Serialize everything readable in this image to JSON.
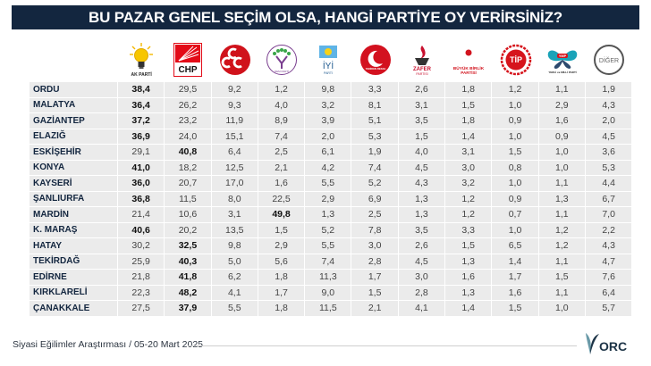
{
  "header": {
    "title": "BU PAZAR GENEL SEÇİM OLSA, HANGİ PARTİYE OY VERİRSİNİZ?"
  },
  "parties": [
    {
      "name": "AK PARTİ",
      "logo_caption": "AK PARTİ",
      "icon": "ak-parti-bulb-icon",
      "color": "#f5b800"
    },
    {
      "name": "CHP",
      "logo_caption": "CHP",
      "icon": "chp-six-arrows-icon",
      "color": "#e30a17"
    },
    {
      "name": "MHP",
      "logo_caption": "",
      "icon": "mhp-three-crescents-icon",
      "color": "#d0121b"
    },
    {
      "name": "DEM PARTİ",
      "logo_caption": "DEM PARTİ",
      "icon": "dem-parti-tree-icon",
      "color": "#7a3e8f"
    },
    {
      "name": "İYİ PARTİ",
      "logo_caption": "İYİ",
      "icon": "iyi-parti-sun-icon",
      "color": "#1f8ad0"
    },
    {
      "name": "YENİDEN REFAH",
      "logo_caption": "YENİDEN REFAH",
      "icon": "yeniden-refah-crescent-icon",
      "color": "#d3111f"
    },
    {
      "name": "ZAFER PARTİSİ",
      "logo_caption": "ZAFER PARTİSİ",
      "icon": "zafer-flame-icon",
      "color": "#c8102e"
    },
    {
      "name": "BÜYÜK BİRLİK PARTİSİ",
      "logo_caption": "BÜYÜK BİRLİK PARTİSİ",
      "icon": "bbp-crescent-rose-icon",
      "color": "#d2141e"
    },
    {
      "name": "TİP",
      "logo_caption": "TİP",
      "icon": "tip-wreath-icon",
      "color": "#d6141c"
    },
    {
      "name": "YMP",
      "logo_caption": "YERLİ ve MİLLİ PARTİ",
      "icon": "ymp-butterfly-icon",
      "color": "#1aa3b8"
    },
    {
      "name": "DİĞER",
      "logo_caption": "DİĞER",
      "icon": "other-circle-icon",
      "color": "#555555"
    }
  ],
  "chart_data": {
    "type": "table",
    "title": "BU PAZAR GENEL SEÇİM OLSA, HANGİ PARTİYE OY VERİRSİNİZ?",
    "columns": [
      "AK PARTİ",
      "CHP",
      "MHP",
      "DEM PARTİ",
      "İYİ PARTİ",
      "YENİDEN REFAH",
      "ZAFER PARTİSİ",
      "BÜYÜK BİRLİK PARTİSİ",
      "TİP",
      "YMP",
      "DİĞER"
    ],
    "rows": [
      {
        "province": "ORDU",
        "values": [
          "38,4",
          "29,5",
          "9,2",
          "1,2",
          "9,8",
          "3,3",
          "2,6",
          "1,8",
          "1,2",
          "1,1",
          "1,9"
        ],
        "leader_index": 0
      },
      {
        "province": "MALATYA",
        "values": [
          "36,4",
          "26,2",
          "9,3",
          "4,0",
          "3,2",
          "8,1",
          "3,1",
          "1,5",
          "1,0",
          "2,9",
          "4,3"
        ],
        "leader_index": 0
      },
      {
        "province": "GAZİANTEP",
        "values": [
          "37,2",
          "23,2",
          "11,9",
          "8,9",
          "3,9",
          "5,1",
          "3,5",
          "1,8",
          "0,9",
          "1,6",
          "2,0"
        ],
        "leader_index": 0
      },
      {
        "province": "ELAZIĞ",
        "values": [
          "36,9",
          "24,0",
          "15,1",
          "7,4",
          "2,0",
          "5,3",
          "1,5",
          "1,4",
          "1,0",
          "0,9",
          "4,5"
        ],
        "leader_index": 0
      },
      {
        "province": "ESKİŞEHİR",
        "values": [
          "29,1",
          "40,8",
          "6,4",
          "2,5",
          "6,1",
          "1,9",
          "4,0",
          "3,1",
          "1,5",
          "1,0",
          "3,6"
        ],
        "leader_index": 1
      },
      {
        "province": "KONYA",
        "values": [
          "41,0",
          "18,2",
          "12,5",
          "2,1",
          "4,2",
          "7,4",
          "4,5",
          "3,0",
          "0,8",
          "1,0",
          "5,3"
        ],
        "leader_index": 0
      },
      {
        "province": "KAYSERİ",
        "values": [
          "36,0",
          "20,7",
          "17,0",
          "1,6",
          "5,5",
          "5,2",
          "4,3",
          "3,2",
          "1,0",
          "1,1",
          "4,4"
        ],
        "leader_index": 0
      },
      {
        "province": "ŞANLIURFA",
        "values": [
          "36,8",
          "11,5",
          "8,0",
          "22,5",
          "2,9",
          "6,9",
          "1,3",
          "1,2",
          "0,9",
          "1,3",
          "6,7"
        ],
        "leader_index": 0
      },
      {
        "province": "MARDİN",
        "values": [
          "21,4",
          "10,6",
          "3,1",
          "49,8",
          "1,3",
          "2,5",
          "1,3",
          "1,2",
          "0,7",
          "1,1",
          "7,0"
        ],
        "leader_index": 3
      },
      {
        "province": "K. MARAŞ",
        "values": [
          "40,6",
          "20,2",
          "13,5",
          "1,5",
          "5,2",
          "7,8",
          "3,5",
          "3,3",
          "1,0",
          "1,2",
          "2,2"
        ],
        "leader_index": 0
      },
      {
        "province": "HATAY",
        "values": [
          "30,2",
          "32,5",
          "9,8",
          "2,9",
          "5,5",
          "3,0",
          "2,6",
          "1,5",
          "6,5",
          "1,2",
          "4,3"
        ],
        "leader_index": 1
      },
      {
        "province": "TEKİRDAĞ",
        "values": [
          "25,9",
          "40,3",
          "5,0",
          "5,6",
          "7,4",
          "2,8",
          "4,5",
          "1,3",
          "1,4",
          "1,1",
          "4,7"
        ],
        "leader_index": 1
      },
      {
        "province": "EDİRNE",
        "values": [
          "21,8",
          "41,8",
          "6,2",
          "1,8",
          "11,3",
          "1,7",
          "3,0",
          "1,6",
          "1,7",
          "1,5",
          "7,6"
        ],
        "leader_index": 1
      },
      {
        "province": "KIRKLARELİ",
        "values": [
          "22,3",
          "48,2",
          "4,1",
          "1,7",
          "9,0",
          "1,5",
          "2,8",
          "1,3",
          "1,6",
          "1,1",
          "6,4"
        ],
        "leader_index": 1
      },
      {
        "province": "ÇANAKKALE",
        "values": [
          "27,5",
          "37,9",
          "5,5",
          "1,8",
          "11,5",
          "2,1",
          "4,1",
          "1,4",
          "1,5",
          "1,0",
          "5,7"
        ],
        "leader_index": 1
      }
    ],
    "unit": "%"
  },
  "footer": {
    "source": "Siyasi Eğilimler Araştırması / 05-20 Mart 2025",
    "brand": "ORC"
  },
  "colors": {
    "title_bg": "#13263f",
    "cell_bg": "#ebebeb",
    "province_text": "#13263f"
  }
}
